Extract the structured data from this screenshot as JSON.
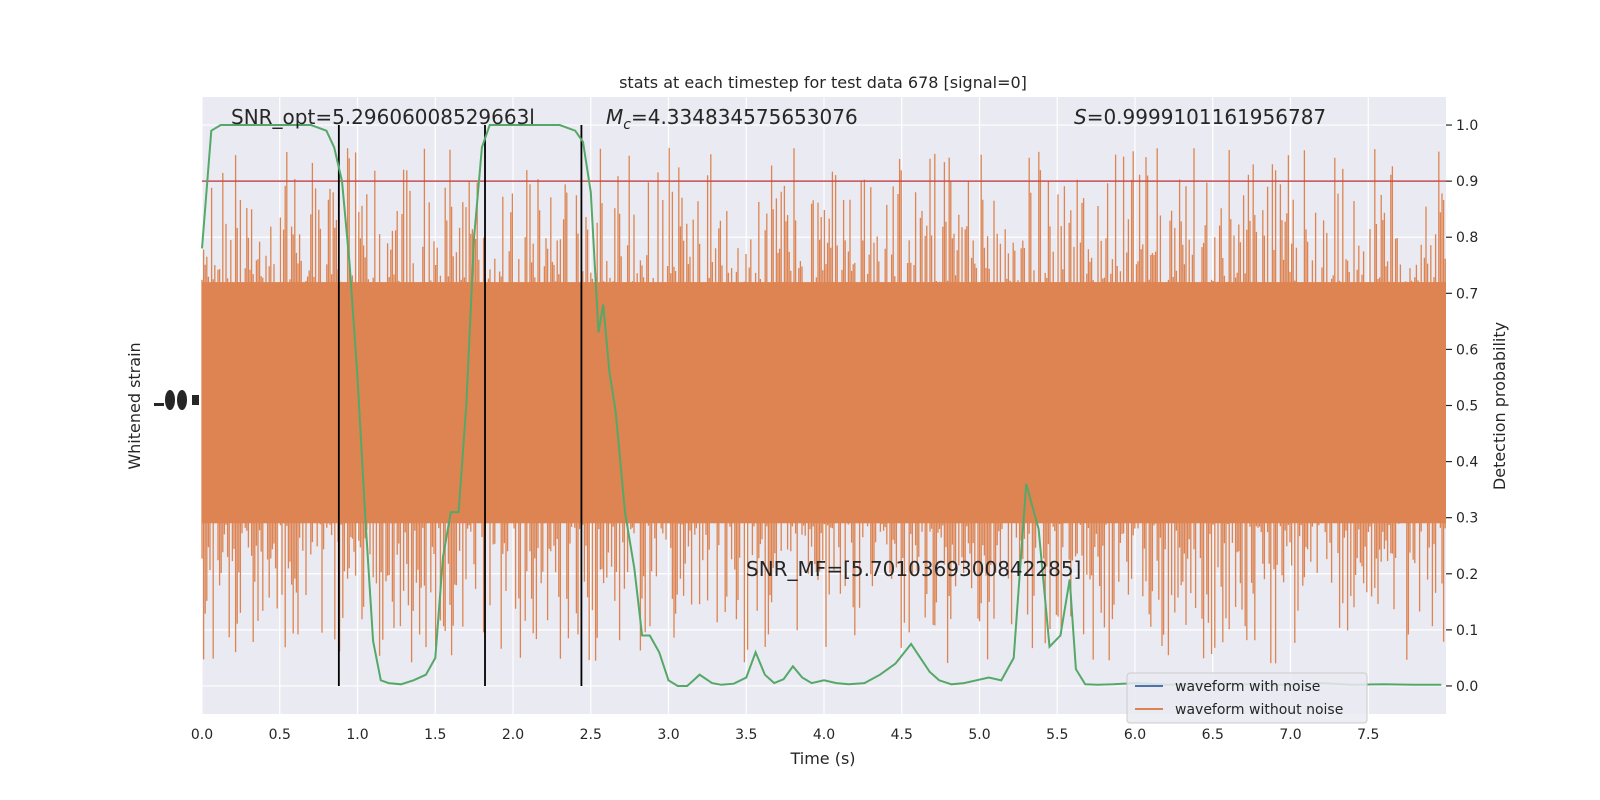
{
  "chart_data": {
    "type": "line",
    "title": "stats at each timestep for test data 678 [signal=0]",
    "xlabel": "Time (s)",
    "ylabel_left": "Whitened strain",
    "ylabel_right": "Detection probability",
    "xlim": [
      0.0,
      8.0
    ],
    "ylim_right": [
      -0.05,
      1.05
    ],
    "grid": true,
    "x_ticks": [
      "0.0",
      "0.5",
      "1.0",
      "1.5",
      "2.0",
      "2.5",
      "3.0",
      "3.5",
      "4.0",
      "4.5",
      "5.0",
      "5.5",
      "6.0",
      "6.5",
      "7.0",
      "7.5"
    ],
    "y_ticks_right": [
      "0.0",
      "0.1",
      "0.2",
      "0.3",
      "0.4",
      "0.5",
      "0.6",
      "0.7",
      "0.8",
      "0.9",
      "1.0"
    ],
    "annotations": {
      "snr_opt": "SNR_opt=5.29606008529663l",
      "mc_symbol": "M",
      "mc_sub": "c",
      "mc_value": "=4.334834575653076",
      "s_symbol": "S",
      "s_value": "=0.9999101161956787",
      "snr_mf": "SNR_MF=[5.7010369300842285]"
    },
    "threshold": 0.9,
    "vertical_lines_x": [
      0.88,
      1.82,
      2.44
    ],
    "series": [
      {
        "name": "waveform with noise",
        "color": "#4c72b0"
      },
      {
        "name": "waveform without noise",
        "color": "#dd8452"
      }
    ],
    "detection_prob_color": "#55a868",
    "threshold_color": "#c44e52",
    "detection_probability": {
      "x": [
        0.0,
        0.06,
        0.12,
        0.2,
        0.3,
        0.4,
        0.5,
        0.6,
        0.7,
        0.8,
        0.85,
        0.9,
        0.95,
        1.0,
        1.05,
        1.1,
        1.15,
        1.2,
        1.28,
        1.36,
        1.44,
        1.5,
        1.55,
        1.6,
        1.65,
        1.7,
        1.75,
        1.8,
        1.85,
        1.9,
        1.95,
        2.0,
        2.1,
        2.2,
        2.3,
        2.4,
        2.45,
        2.5,
        2.55,
        2.58,
        2.62,
        2.66,
        2.72,
        2.78,
        2.83,
        2.88,
        2.94,
        3.0,
        3.06,
        3.12,
        3.2,
        3.28,
        3.34,
        3.42,
        3.5,
        3.56,
        3.62,
        3.68,
        3.74,
        3.8,
        3.86,
        3.92,
        4.0,
        4.08,
        4.16,
        4.26,
        4.36,
        4.46,
        4.56,
        4.62,
        4.68,
        4.74,
        4.82,
        4.9,
        4.98,
        5.06,
        5.14,
        5.22,
        5.3,
        5.38,
        5.45,
        5.52,
        5.58,
        5.62,
        5.68,
        5.76,
        5.86,
        6.0,
        6.2,
        6.4,
        6.6,
        6.8,
        7.0,
        7.2,
        7.4,
        7.6,
        7.8,
        7.97
      ],
      "y": [
        0.78,
        0.99,
        1.0,
        1.0,
        1.0,
        1.0,
        1.0,
        1.0,
        1.0,
        0.99,
        0.96,
        0.9,
        0.75,
        0.55,
        0.3,
        0.08,
        0.01,
        0.005,
        0.003,
        0.01,
        0.02,
        0.05,
        0.23,
        0.31,
        0.31,
        0.5,
        0.8,
        0.96,
        1.0,
        1.0,
        1.0,
        1.0,
        1.0,
        1.0,
        1.0,
        0.99,
        0.97,
        0.88,
        0.63,
        0.68,
        0.56,
        0.49,
        0.31,
        0.21,
        0.09,
        0.09,
        0.06,
        0.01,
        0.0,
        0.0,
        0.02,
        0.005,
        0.002,
        0.004,
        0.015,
        0.06,
        0.02,
        0.005,
        0.012,
        0.035,
        0.015,
        0.005,
        0.01,
        0.005,
        0.003,
        0.005,
        0.02,
        0.04,
        0.075,
        0.05,
        0.025,
        0.01,
        0.003,
        0.005,
        0.01,
        0.015,
        0.01,
        0.05,
        0.36,
        0.28,
        0.07,
        0.09,
        0.19,
        0.03,
        0.003,
        0.002,
        0.003,
        0.005,
        0.002,
        0.003,
        0.004,
        0.002,
        0.002,
        0.005,
        0.002,
        0.003,
        0.002,
        0.002
      ]
    }
  }
}
